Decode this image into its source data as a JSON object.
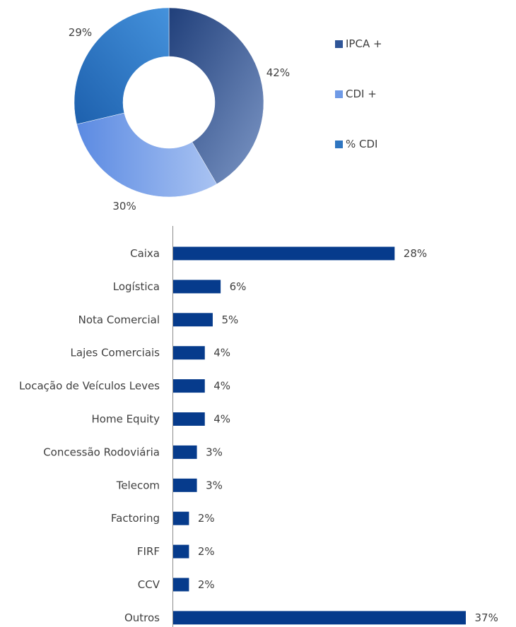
{
  "chart_data": [
    {
      "type": "pie",
      "variant": "donut",
      "categories": [
        "IPCA +",
        "CDI +",
        "% CDI"
      ],
      "values": [
        42,
        30,
        29
      ],
      "labels": [
        "42%",
        "30%",
        "29%"
      ],
      "colors": [
        "#2f5597",
        "#6f9ae6",
        "#2e75c0"
      ],
      "legend_position": "right"
    },
    {
      "type": "bar",
      "orientation": "horizontal",
      "categories": [
        "Caixa",
        "Logística",
        "Nota Comercial",
        "Lajes Comerciais",
        "Locação de Veículos Leves",
        "Home Equity",
        "Concessão Rodoviária",
        "Telecom",
        "Factoring",
        "FIRF",
        "CCV",
        "Outros"
      ],
      "values": [
        28,
        6,
        5,
        4,
        4,
        4,
        3,
        3,
        2,
        2,
        2,
        37
      ],
      "labels": [
        "28%",
        "6%",
        "5%",
        "4%",
        "4%",
        "4%",
        "3%",
        "3%",
        "2%",
        "2%",
        "2%",
        "37%"
      ],
      "color": "#063b8c",
      "xlim": [
        0,
        37
      ]
    }
  ]
}
